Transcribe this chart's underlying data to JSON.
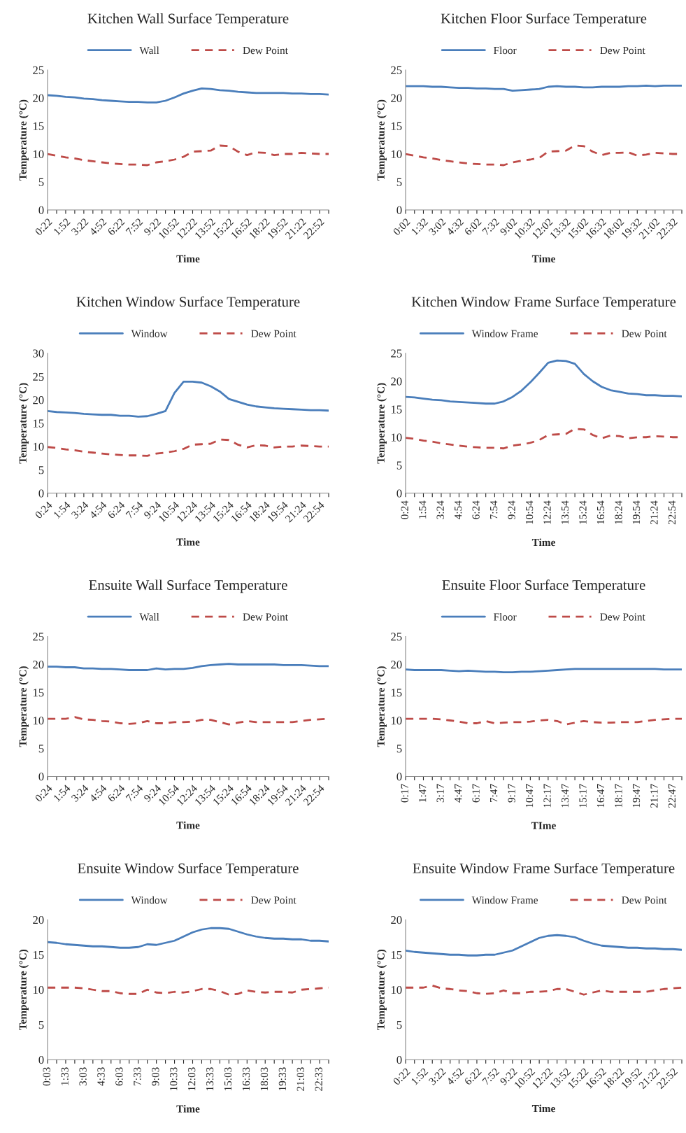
{
  "chart_data": [
    {
      "type": "line",
      "title": "Kitchen Wall Surface Temperature",
      "xlabel": "Time",
      "ylabel": "Temperature (°C)",
      "legend": "top",
      "ylim": [
        0,
        25
      ],
      "yticks": [
        0,
        5,
        10,
        15,
        20,
        25
      ],
      "categories": [
        "0:22",
        null,
        "1:52",
        null,
        "3:22",
        null,
        "4:52",
        null,
        "6:22",
        null,
        "7:52",
        null,
        "9:22",
        null,
        "10:52",
        null,
        "12:22",
        null,
        "13:52",
        null,
        "15:22",
        null,
        "16:52",
        null,
        "18:22",
        null,
        "19:52",
        null,
        "21:22",
        null,
        "22:52",
        null
      ],
      "series": [
        {
          "name": "Wall",
          "color": "#4a7ebb",
          "line_style": "solid",
          "values": [
            20.5,
            20.4,
            20.2,
            20.1,
            19.9,
            19.8,
            19.6,
            19.5,
            19.4,
            19.3,
            19.3,
            19.2,
            19.2,
            19.5,
            20.1,
            20.8,
            21.3,
            21.7,
            21.6,
            21.4,
            21.3,
            21.1,
            21.0,
            20.9,
            20.9,
            20.9,
            20.9,
            20.8,
            20.8,
            20.7,
            20.7,
            20.6
          ]
        },
        {
          "name": "Dew Point",
          "color": "#be4b48",
          "line_style": "dashed",
          "values": [
            10.0,
            9.7,
            9.4,
            9.2,
            8.9,
            8.7,
            8.5,
            8.3,
            8.2,
            8.1,
            8.1,
            8.0,
            8.5,
            8.7,
            9.0,
            9.5,
            10.4,
            10.5,
            10.6,
            11.5,
            11.4,
            10.4,
            9.8,
            10.3,
            10.2,
            9.8,
            10.0,
            10.0,
            10.2,
            10.1,
            10.0,
            10.0
          ]
        }
      ]
    },
    {
      "type": "line",
      "title": "Kitchen Floor Surface Temperature",
      "xlabel": "Time",
      "ylabel": "Temperature (°C)",
      "legend": "top",
      "ylim": [
        0,
        25
      ],
      "yticks": [
        0,
        5,
        10,
        15,
        20,
        25
      ],
      "categories": [
        "0:02",
        null,
        "1:32",
        null,
        "3:02",
        null,
        "4:32",
        null,
        "6:02",
        null,
        "7:32",
        null,
        "9:02",
        null,
        "10:32",
        null,
        "12:02",
        null,
        "13:32",
        null,
        "15:02",
        null,
        "16:32",
        null,
        "18:02",
        null,
        "19:32",
        null,
        "21:02",
        null,
        "22:32",
        null
      ],
      "series": [
        {
          "name": "Floor",
          "color": "#4a7ebb",
          "line_style": "solid",
          "values": [
            22.1,
            22.1,
            22.1,
            22.0,
            22.0,
            21.9,
            21.8,
            21.8,
            21.7,
            21.7,
            21.6,
            21.6,
            21.3,
            21.4,
            21.5,
            21.6,
            22.0,
            22.1,
            22.0,
            22.0,
            21.9,
            21.9,
            22.0,
            22.0,
            22.0,
            22.1,
            22.1,
            22.2,
            22.1,
            22.2,
            22.2,
            22.2
          ]
        },
        {
          "name": "Dew Point",
          "color": "#be4b48",
          "line_style": "dashed",
          "values": [
            10.0,
            9.7,
            9.4,
            9.2,
            8.9,
            8.7,
            8.5,
            8.3,
            8.2,
            8.1,
            8.1,
            8.0,
            8.5,
            8.8,
            9.0,
            9.3,
            10.4,
            10.5,
            10.6,
            11.5,
            11.4,
            10.4,
            9.8,
            10.2,
            10.2,
            10.3,
            9.7,
            9.9,
            10.2,
            10.1,
            10.0,
            10.0
          ]
        }
      ]
    },
    {
      "type": "line",
      "title": "Kitchen Window Surface Temperature",
      "xlabel": "Time",
      "ylabel": "Temperature (°C)",
      "legend": "top",
      "ylim": [
        0,
        30
      ],
      "yticks": [
        0,
        5,
        10,
        15,
        20,
        25,
        30
      ],
      "categories": [
        "0:24",
        null,
        "1:54",
        null,
        "3:24",
        null,
        "4:54",
        null,
        "6:24",
        null,
        "7:54",
        null,
        "9:24",
        null,
        "10:54",
        null,
        "12:24",
        null,
        "13:54",
        null,
        "15:24",
        null,
        "16:54",
        null,
        "18:24",
        null,
        "19:54",
        null,
        "21:24",
        null,
        "22:54",
        null
      ],
      "series": [
        {
          "name": "Window",
          "color": "#4a7ebb",
          "line_style": "solid",
          "values": [
            17.6,
            17.4,
            17.3,
            17.2,
            17.0,
            16.9,
            16.8,
            16.8,
            16.6,
            16.6,
            16.4,
            16.5,
            17.0,
            17.6,
            21.5,
            23.9,
            23.9,
            23.7,
            22.9,
            21.8,
            20.2,
            19.6,
            19.0,
            18.6,
            18.4,
            18.2,
            18.1,
            18.0,
            17.9,
            17.8,
            17.8,
            17.7
          ]
        },
        {
          "name": "Dew Point",
          "color": "#be4b48",
          "line_style": "dashed",
          "values": [
            9.9,
            9.7,
            9.4,
            9.2,
            8.9,
            8.7,
            8.5,
            8.3,
            8.2,
            8.1,
            8.1,
            8.0,
            8.5,
            8.7,
            9.0,
            9.5,
            10.4,
            10.5,
            10.6,
            11.5,
            11.4,
            10.4,
            9.8,
            10.3,
            10.2,
            9.8,
            10.0,
            10.0,
            10.2,
            10.1,
            10.0,
            10.0
          ]
        }
      ]
    },
    {
      "type": "line",
      "title": "Kitchen Window Frame Surface Temperature",
      "xlabel": "Time",
      "ylabel": "Temperature (°C)",
      "legend": "top",
      "ylim": [
        0,
        25
      ],
      "yticks": [
        0,
        5,
        10,
        15,
        20,
        25
      ],
      "categories": [
        "0:24",
        null,
        "1:54",
        null,
        "3:24",
        null,
        "4:54",
        null,
        "6:24",
        null,
        "7:54",
        null,
        "9:24",
        null,
        "10:54",
        null,
        "12:24",
        null,
        "13:54",
        null,
        "15:24",
        null,
        "16:54",
        null,
        "18:24",
        null,
        "19:54",
        null,
        "21:24",
        null,
        "22:54",
        null
      ],
      "series": [
        {
          "name": "Window Frame",
          "color": "#4a7ebb",
          "line_style": "solid",
          "values": [
            17.2,
            17.1,
            16.9,
            16.7,
            16.6,
            16.4,
            16.3,
            16.2,
            16.1,
            16.0,
            16.0,
            16.4,
            17.2,
            18.3,
            19.8,
            21.5,
            23.3,
            23.7,
            23.6,
            23.1,
            21.3,
            20.0,
            19.0,
            18.4,
            18.1,
            17.8,
            17.7,
            17.5,
            17.5,
            17.4,
            17.4,
            17.3
          ]
        },
        {
          "name": "Dew Point",
          "color": "#be4b48",
          "line_style": "dashed",
          "values": [
            9.9,
            9.7,
            9.4,
            9.2,
            8.9,
            8.7,
            8.5,
            8.3,
            8.2,
            8.1,
            8.1,
            8.0,
            8.5,
            8.7,
            9.0,
            9.5,
            10.4,
            10.5,
            10.6,
            11.5,
            11.4,
            10.4,
            9.8,
            10.3,
            10.2,
            9.8,
            10.0,
            10.0,
            10.2,
            10.1,
            10.0,
            10.0
          ]
        }
      ]
    },
    {
      "type": "line",
      "title": "Ensuite Wall Surface Temperature",
      "xlabel": "Time",
      "ylabel": "Temperature (°C)",
      "legend": "top",
      "ylim": [
        0,
        25
      ],
      "yticks": [
        0,
        5,
        10,
        15,
        20,
        25
      ],
      "categories": [
        "0:24",
        null,
        "1:54",
        null,
        "3:24",
        null,
        "4:54",
        null,
        "6:24",
        null,
        "7:54",
        null,
        "9:24",
        null,
        "10:54",
        null,
        "12:24",
        null,
        "13:54",
        null,
        "15:24",
        null,
        "16:54",
        null,
        "18:24",
        null,
        "19:54",
        null,
        "21:24",
        null,
        "22:54",
        null
      ],
      "series": [
        {
          "name": "Wall",
          "color": "#4a7ebb",
          "line_style": "solid",
          "values": [
            19.6,
            19.6,
            19.5,
            19.5,
            19.3,
            19.3,
            19.2,
            19.2,
            19.1,
            19.0,
            19.0,
            19.0,
            19.3,
            19.1,
            19.2,
            19.2,
            19.4,
            19.7,
            19.9,
            20.0,
            20.1,
            20.0,
            20.0,
            20.0,
            20.0,
            20.0,
            19.9,
            19.9,
            19.9,
            19.8,
            19.7,
            19.7
          ]
        },
        {
          "name": "Dew Point",
          "color": "#be4b48",
          "line_style": "dashed",
          "values": [
            10.3,
            10.3,
            10.3,
            10.6,
            10.2,
            10.1,
            9.9,
            9.8,
            9.5,
            9.4,
            9.5,
            9.9,
            9.5,
            9.5,
            9.7,
            9.7,
            9.8,
            10.1,
            10.1,
            9.7,
            9.3,
            9.6,
            9.9,
            9.7,
            9.7,
            9.7,
            9.7,
            9.7,
            9.9,
            10.1,
            10.2,
            10.3
          ]
        }
      ]
    },
    {
      "type": "line",
      "title": "Ensuite Floor Surface Temperature",
      "xlabel": "TIme",
      "ylabel": "Temperature (°C)",
      "legend": "top",
      "ylim": [
        0,
        25
      ],
      "yticks": [
        0,
        5,
        10,
        15,
        20,
        25
      ],
      "categories": [
        "0:17",
        null,
        "1:47",
        null,
        "3:17",
        null,
        "4:47",
        null,
        "6:17",
        null,
        "7:47",
        null,
        "9:17",
        null,
        "10:47",
        null,
        "12:17",
        null,
        "13:47",
        null,
        "15:17",
        null,
        "16:47",
        null,
        "18:17",
        null,
        "19:47",
        null,
        "21:17",
        null,
        "22:47",
        null
      ],
      "series": [
        {
          "name": "Floor",
          "color": "#4a7ebb",
          "line_style": "solid",
          "values": [
            19.1,
            19.0,
            19.0,
            19.0,
            19.0,
            18.9,
            18.8,
            18.9,
            18.8,
            18.7,
            18.7,
            18.6,
            18.6,
            18.7,
            18.7,
            18.8,
            18.9,
            19.0,
            19.1,
            19.2,
            19.2,
            19.2,
            19.2,
            19.2,
            19.2,
            19.2,
            19.2,
            19.2,
            19.2,
            19.1,
            19.1,
            19.1
          ]
        },
        {
          "name": "Dew Point",
          "color": "#be4b48",
          "line_style": "dashed",
          "values": [
            10.3,
            10.3,
            10.3,
            10.3,
            10.2,
            10.0,
            9.8,
            9.5,
            9.5,
            9.9,
            9.5,
            9.6,
            9.7,
            9.7,
            9.8,
            10.0,
            10.1,
            9.9,
            9.3,
            9.6,
            9.9,
            9.7,
            9.6,
            9.6,
            9.7,
            9.7,
            9.7,
            9.9,
            10.1,
            10.2,
            10.3,
            10.3
          ]
        }
      ]
    },
    {
      "type": "line",
      "title": "Ensuite Window Surface Temperature",
      "xlabel": "Time",
      "ylabel": "Temperature (°C)",
      "legend": "top",
      "ylim": [
        0,
        20
      ],
      "yticks": [
        0,
        5,
        10,
        15,
        20
      ],
      "categories": [
        "0:03",
        null,
        "1:33",
        null,
        "3:03",
        null,
        "4:33",
        null,
        "6:03",
        null,
        "7:33",
        null,
        "9:03",
        null,
        "10:33",
        null,
        "12:03",
        null,
        "13:33",
        null,
        "15:03",
        null,
        "16:33",
        null,
        "18:03",
        null,
        "19:33",
        null,
        "21:03",
        null,
        "22:33",
        null
      ],
      "series": [
        {
          "name": "Window",
          "color": "#4a7ebb",
          "line_style": "solid",
          "values": [
            16.8,
            16.7,
            16.5,
            16.4,
            16.3,
            16.2,
            16.2,
            16.1,
            16.0,
            16.0,
            16.1,
            16.5,
            16.4,
            16.7,
            17.0,
            17.6,
            18.2,
            18.6,
            18.8,
            18.8,
            18.7,
            18.3,
            17.9,
            17.6,
            17.4,
            17.3,
            17.3,
            17.2,
            17.2,
            17.0,
            17.0,
            16.9
          ]
        },
        {
          "name": "Dew Point",
          "color": "#be4b48",
          "line_style": "dashed",
          "values": [
            10.3,
            10.3,
            10.3,
            10.3,
            10.2,
            10.0,
            9.8,
            9.8,
            9.5,
            9.4,
            9.4,
            10.0,
            9.6,
            9.5,
            9.7,
            9.6,
            9.8,
            10.1,
            10.1,
            9.8,
            9.3,
            9.4,
            9.9,
            9.7,
            9.6,
            9.7,
            9.7,
            9.6,
            10.0,
            10.1,
            10.2,
            10.3
          ]
        }
      ]
    },
    {
      "type": "line",
      "title": "Ensuite Window Frame Surface Temperature",
      "xlabel": "Time",
      "ylabel": "Temperature (°C)",
      "legend": "top",
      "ylim": [
        0,
        20
      ],
      "yticks": [
        0,
        5,
        10,
        15,
        20
      ],
      "categories": [
        "0:22",
        null,
        "1:52",
        null,
        "3:22",
        null,
        "4:52",
        null,
        "6:22",
        null,
        "7:52",
        null,
        "9:22",
        null,
        "10:52",
        null,
        "12:22",
        null,
        "13:52",
        null,
        "15:22",
        null,
        "16:52",
        null,
        "18:22",
        null,
        "19:52",
        null,
        "21:22",
        null,
        "22:52",
        null
      ],
      "series": [
        {
          "name": "Window Frame",
          "color": "#4a7ebb",
          "line_style": "solid",
          "values": [
            15.6,
            15.4,
            15.3,
            15.2,
            15.1,
            15.0,
            15.0,
            14.9,
            14.9,
            15.0,
            15.0,
            15.3,
            15.6,
            16.2,
            16.8,
            17.4,
            17.7,
            17.8,
            17.7,
            17.5,
            17.0,
            16.6,
            16.3,
            16.2,
            16.1,
            16.0,
            16.0,
            15.9,
            15.9,
            15.8,
            15.8,
            15.7
          ]
        },
        {
          "name": "Dew Point",
          "color": "#be4b48",
          "line_style": "dashed",
          "values": [
            10.3,
            10.3,
            10.3,
            10.6,
            10.2,
            10.1,
            9.9,
            9.8,
            9.5,
            9.4,
            9.5,
            9.9,
            9.5,
            9.5,
            9.7,
            9.7,
            9.8,
            10.1,
            10.1,
            9.7,
            9.3,
            9.6,
            9.9,
            9.7,
            9.7,
            9.7,
            9.7,
            9.7,
            9.9,
            10.1,
            10.2,
            10.3
          ]
        }
      ]
    }
  ]
}
